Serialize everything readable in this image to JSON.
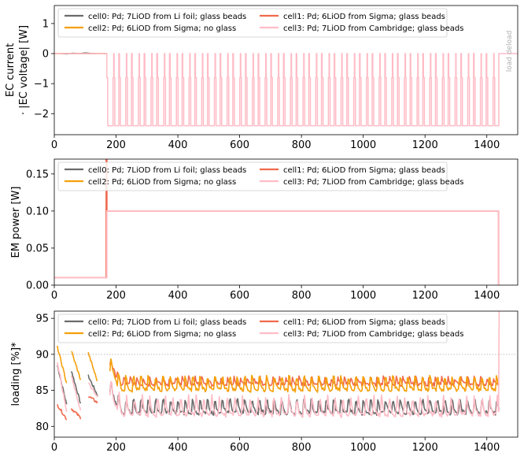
{
  "colors": {
    "cell0": "#6b6b6b",
    "cell1": "#ef6a4c",
    "cell2": "#f5a00a",
    "cell3": "#ffbcc6",
    "grid_ref": "#aaaaaa"
  },
  "legend_labels": [
    "cell0: Pd; 7LiOD from Li foil; glass beads",
    "cell1: Pd; 6LiOD from Sigma; glass beads",
    "cell2: Pd; 6LiOD from Sigma; no glass",
    "cell3: Pd; 7LiOD from Cambridge; glass beads"
  ],
  "chart_data": [
    {
      "type": "line",
      "ylabel": "EC current\n· |EC voltage| [W]",
      "xlim": [
        0,
        1500
      ],
      "ylim": [
        -2.7,
        1.6
      ],
      "xticks": [
        0,
        200,
        400,
        600,
        800,
        1000,
        1200,
        1400
      ],
      "yticks": [
        -2,
        -1,
        0,
        1
      ],
      "legend": "top-left",
      "annotation": "load deload",
      "series": [
        {
          "name": "cell0: Pd; 7LiOD from Li foil; glass beads",
          "x": [
            0,
            170
          ],
          "y": [
            0,
            0
          ]
        },
        {
          "name": "cell1: Pd; 6LiOD from Sigma; glass beads",
          "x": [
            0,
            170
          ],
          "y": [
            0,
            0
          ]
        },
        {
          "name": "cell2: Pd; 6LiOD from Sigma; no glass",
          "x": [
            0,
            170
          ],
          "y": [
            0,
            0
          ]
        },
        {
          "name": "cell3: Pd; 7LiOD from Cambridge; glass beads",
          "pattern": {
            "start": 170,
            "end": 1440,
            "period": 41,
            "levels": [
              -0.8,
              -2.4
            ],
            "baseline": 0
          }
        }
      ]
    },
    {
      "type": "line",
      "ylabel": "EM power [W]",
      "xlim": [
        0,
        1500
      ],
      "ylim": [
        0,
        0.17
      ],
      "xticks": [
        0,
        200,
        400,
        600,
        800,
        1000,
        1200,
        1400
      ],
      "yticks": [
        0.0,
        0.05,
        0.1,
        0.15
      ],
      "legend": "top-left",
      "series": [
        {
          "name": "cell1: Pd; 6LiOD from Sigma; glass beads",
          "x": [
            0,
            168,
            168,
            170,
            170,
            1438,
            1438
          ],
          "y": [
            0.01,
            0.01,
            0.17,
            0.17,
            0.1,
            0.1,
            0
          ]
        },
        {
          "name": "cell3: Pd; 7LiOD from Cambridge; glass beads",
          "x": [
            0,
            170,
            170,
            1438,
            1438
          ],
          "y": [
            0.01,
            0.01,
            0.1,
            0.1,
            0
          ]
        }
      ]
    },
    {
      "type": "line",
      "ylabel": "loading [%]*",
      "xlim": [
        0,
        1500
      ],
      "ylim": [
        78.5,
        96
      ],
      "xticks": [
        0,
        200,
        400,
        600,
        800,
        1000,
        1200,
        1400
      ],
      "yticks": [
        80,
        85,
        90,
        95
      ],
      "reference_line": 90,
      "legend": "top-left",
      "series": [
        {
          "name": "cell0: Pd; 7LiOD from Li foil; glass beads",
          "base": 81.8,
          "amp": 2.6,
          "period": 24,
          "early": [
            [
              10,
              88.5,
              83
            ],
            [
              55,
              87.8,
              83.2
            ],
            [
              110,
              87,
              84.3
            ]
          ]
        },
        {
          "name": "cell1: Pd; 6LiOD from Sigma; glass beads",
          "base": 85.8,
          "amp": 1.2,
          "period": 21,
          "early": [
            [
              10,
              83,
              81
            ],
            [
              55,
              82.5,
              81.2
            ],
            [
              110,
              84.2,
              83.3
            ]
          ]
        },
        {
          "name": "cell2: Pd; 6LiOD from Sigma; no glass",
          "base": 85.0,
          "amp": 2.6,
          "period": 24,
          "early": [
            [
              10,
              91,
              86
            ],
            [
              55,
              90.5,
              86.5
            ],
            [
              110,
              90.2,
              86.2
            ]
          ]
        },
        {
          "name": "cell3: Pd; 7LiOD from Cambridge; glass beads",
          "base": 81.5,
          "amp": 3.0,
          "period": 25,
          "early": [
            [
              10,
              89,
              82
            ],
            [
              55,
              87,
              82.2
            ],
            [
              110,
              86,
              84
            ]
          ]
        }
      ]
    }
  ]
}
